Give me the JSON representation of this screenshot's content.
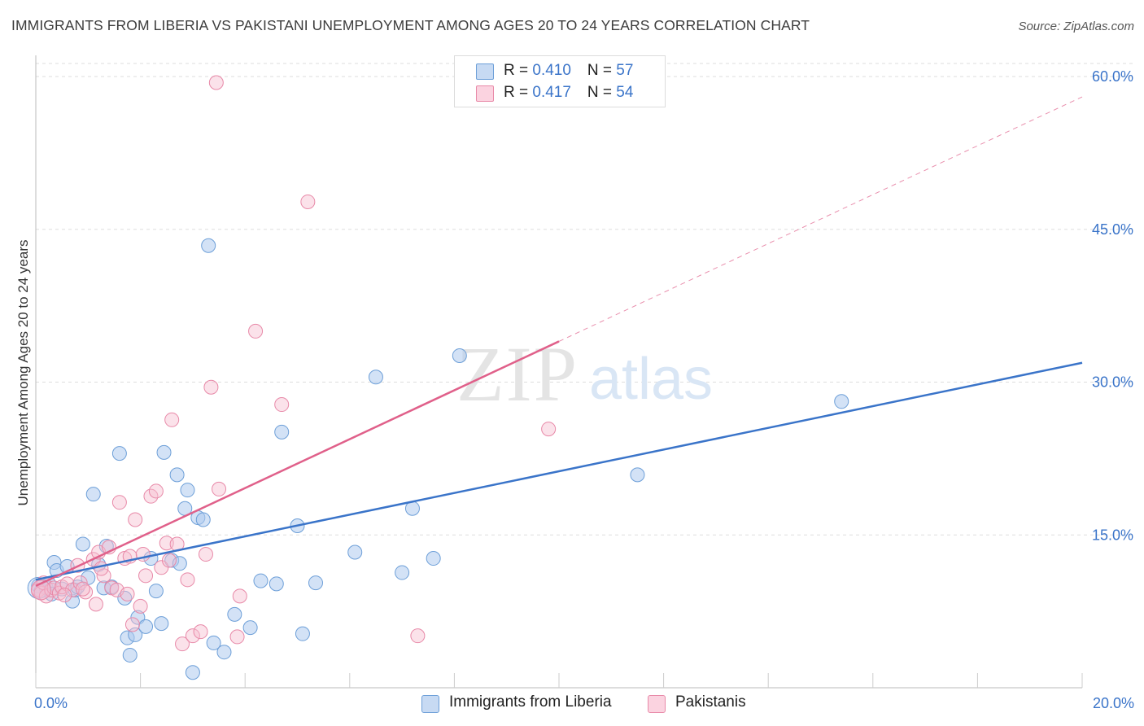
{
  "header": {
    "title": "IMMIGRANTS FROM LIBERIA VS PAKISTANI UNEMPLOYMENT AMONG AGES 20 TO 24 YEARS CORRELATION CHART",
    "source": "Source: ZipAtlas.com"
  },
  "watermark": {
    "zip": "ZIP",
    "atlas": "atlas"
  },
  "legend": {
    "liberia": {
      "r_label": "R = ",
      "r_value": "0.410",
      "n_label": "N = ",
      "n_value": "57"
    },
    "pakistani": {
      "r_label": "R = ",
      "r_value": "0.417",
      "n_label": "N = ",
      "n_value": "54"
    }
  },
  "bottom_legend": {
    "liberia": "Immigrants from Liberia",
    "pakistani": "Pakistanis"
  },
  "colors": {
    "liberia_fill": "#aecbef",
    "liberia_stroke": "#6d9fd8",
    "liberia_line": "#3a74c9",
    "pakistani_fill": "#f7bfd1",
    "pakistani_stroke": "#e889a8",
    "pakistani_line": "#e0608a",
    "tick_label": "#3a74c9",
    "grid": "#dddddd"
  },
  "chart_data": {
    "type": "scatter",
    "title": "IMMIGRANTS FROM LIBERIA VS PAKISTANI UNEMPLOYMENT AMONG AGES 20 TO 24 YEARS CORRELATION CHART",
    "xlabel": "",
    "ylabel": "Unemployment Among Ages 20 to 24 years",
    "xlim": [
      0,
      20
    ],
    "ylim": [
      0,
      60
    ],
    "x_tick_labels": [
      {
        "value": 0,
        "label": "0.0%"
      },
      {
        "value": 20,
        "label": "20.0%"
      }
    ],
    "y_tick_labels": [
      {
        "value": 15,
        "label": "15.0%"
      },
      {
        "value": 30,
        "label": "30.0%"
      },
      {
        "value": 45,
        "label": "45.0%"
      },
      {
        "value": 60,
        "label": "60.0%"
      }
    ],
    "grid": true,
    "legend_position": "top-center",
    "series": [
      {
        "name": "Immigrants from Liberia",
        "R": 0.41,
        "N": 57,
        "trend": {
          "x": [
            0,
            20
          ],
          "y": [
            10.6,
            31.9
          ],
          "dashed_extension": false
        },
        "points": [
          [
            0.05,
            10.0
          ],
          [
            0.1,
            9.5
          ],
          [
            0.2,
            9.8
          ],
          [
            0.25,
            10.2
          ],
          [
            0.3,
            9.2
          ],
          [
            0.35,
            12.3
          ],
          [
            0.4,
            11.5
          ],
          [
            0.5,
            9.7
          ],
          [
            0.6,
            11.9
          ],
          [
            0.7,
            8.5
          ],
          [
            0.75,
            9.6
          ],
          [
            0.8,
            9.9
          ],
          [
            0.9,
            14.1
          ],
          [
            1.0,
            10.8
          ],
          [
            1.1,
            19.0
          ],
          [
            1.2,
            12.1
          ],
          [
            1.3,
            9.8
          ],
          [
            1.35,
            13.9
          ],
          [
            1.45,
            9.9
          ],
          [
            1.6,
            23.0
          ],
          [
            1.7,
            8.8
          ],
          [
            1.75,
            4.9
          ],
          [
            1.8,
            3.2
          ],
          [
            1.9,
            5.2
          ],
          [
            1.95,
            6.9
          ],
          [
            2.1,
            6.0
          ],
          [
            2.2,
            12.7
          ],
          [
            2.3,
            9.5
          ],
          [
            2.4,
            6.3
          ],
          [
            2.45,
            23.1
          ],
          [
            2.6,
            12.5
          ],
          [
            2.7,
            20.9
          ],
          [
            2.75,
            12.2
          ],
          [
            2.85,
            17.6
          ],
          [
            2.9,
            19.4
          ],
          [
            3.0,
            1.5
          ],
          [
            3.1,
            16.7
          ],
          [
            3.2,
            16.5
          ],
          [
            3.3,
            43.4
          ],
          [
            3.4,
            4.4
          ],
          [
            3.6,
            3.5
          ],
          [
            3.8,
            7.2
          ],
          [
            4.1,
            5.9
          ],
          [
            4.3,
            10.5
          ],
          [
            4.6,
            10.2
          ],
          [
            4.7,
            25.1
          ],
          [
            5.0,
            15.9
          ],
          [
            5.1,
            5.3
          ],
          [
            5.35,
            10.3
          ],
          [
            6.1,
            13.3
          ],
          [
            6.5,
            30.5
          ],
          [
            7.0,
            11.3
          ],
          [
            7.2,
            17.6
          ],
          [
            7.6,
            12.7
          ],
          [
            8.1,
            32.6
          ],
          [
            11.5,
            20.9
          ],
          [
            15.4,
            28.1
          ]
        ]
      },
      {
        "name": "Pakistanis",
        "R": 0.417,
        "N": 54,
        "trend": {
          "x": [
            0,
            20
          ],
          "y": [
            10.0,
            58.0
          ],
          "solid_until_x": 10.0,
          "dashed_extension": true
        },
        "points": [
          [
            0.05,
            9.6
          ],
          [
            0.1,
            9.3
          ],
          [
            0.15,
            10.3
          ],
          [
            0.2,
            9.0
          ],
          [
            0.3,
            9.6
          ],
          [
            0.35,
            9.8
          ],
          [
            0.45,
            9.3
          ],
          [
            0.5,
            9.9
          ],
          [
            0.6,
            10.2
          ],
          [
            0.7,
            9.6
          ],
          [
            0.8,
            12.0
          ],
          [
            0.85,
            10.3
          ],
          [
            0.95,
            9.4
          ],
          [
            1.1,
            12.6
          ],
          [
            1.15,
            8.2
          ],
          [
            1.2,
            13.3
          ],
          [
            1.3,
            11.0
          ],
          [
            1.4,
            13.8
          ],
          [
            1.45,
            9.8
          ],
          [
            1.55,
            9.6
          ],
          [
            1.6,
            18.2
          ],
          [
            1.7,
            12.7
          ],
          [
            1.8,
            12.9
          ],
          [
            1.85,
            6.2
          ],
          [
            1.9,
            16.5
          ],
          [
            2.0,
            8.0
          ],
          [
            2.05,
            13.1
          ],
          [
            2.1,
            11.0
          ],
          [
            2.2,
            18.8
          ],
          [
            2.3,
            19.3
          ],
          [
            2.4,
            11.8
          ],
          [
            2.5,
            14.2
          ],
          [
            2.6,
            26.3
          ],
          [
            2.7,
            14.1
          ],
          [
            2.8,
            4.3
          ],
          [
            2.9,
            10.6
          ],
          [
            3.0,
            5.1
          ],
          [
            3.15,
            5.5
          ],
          [
            3.25,
            13.1
          ],
          [
            3.35,
            29.5
          ],
          [
            3.45,
            59.4
          ],
          [
            3.5,
            19.5
          ],
          [
            3.85,
            5.0
          ],
          [
            3.9,
            9.0
          ],
          [
            4.2,
            35.0
          ],
          [
            4.7,
            27.8
          ],
          [
            5.2,
            47.7
          ],
          [
            7.3,
            5.1
          ],
          [
            9.8,
            25.4
          ],
          [
            0.55,
            9.1
          ],
          [
            0.9,
            9.7
          ],
          [
            1.25,
            11.7
          ],
          [
            1.75,
            9.2
          ],
          [
            2.55,
            12.5
          ]
        ]
      }
    ]
  }
}
